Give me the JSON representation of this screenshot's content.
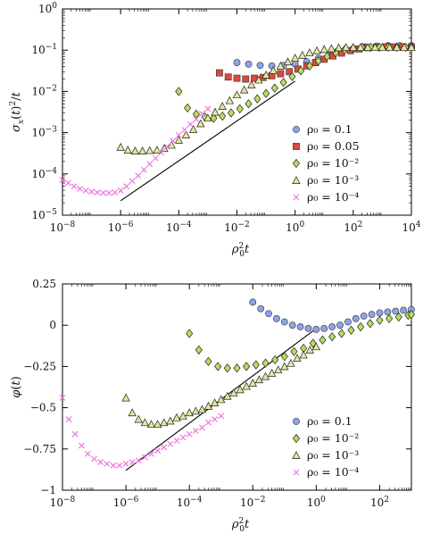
{
  "chart_data": [
    {
      "type": "scatter",
      "id": "top",
      "xlabel": "ρ0²t",
      "ylabel": "σx(t)²/t",
      "xscale": "log",
      "yscale": "log",
      "xlim": [
        1e-08,
        10000.0
      ],
      "ylim": [
        1e-05,
        1
      ],
      "xticks": [
        -8,
        -6,
        -4,
        -2,
        0,
        2,
        4
      ],
      "yticks": [
        -5,
        -4,
        -3,
        -2,
        -1,
        0
      ],
      "legend_position": "bottom-right",
      "series": [
        {
          "name": "ρ0 = 0.1",
          "name_text": "ρ₀ = 0.1",
          "marker": "circle",
          "color": "#8ea2e8",
          "x": [
            -2,
            -1.6,
            -1.2,
            -0.8,
            -0.4,
            0,
            0.4,
            0.8,
            1.2,
            1.6,
            2,
            2.4,
            2.8,
            3.2,
            3.6,
            4
          ],
          "y": [
            -1.3,
            -1.34,
            -1.37,
            -1.38,
            -1.37,
            -1.34,
            -1.28,
            -1.2,
            -1.12,
            -1.04,
            -0.97,
            -0.92,
            -0.9,
            -0.89,
            -0.89,
            -0.89
          ]
        },
        {
          "name": "ρ0 = 0.05",
          "name_text": "ρ₀ = 0.05",
          "marker": "square",
          "color": "#d84a3a",
          "x": [
            -2.6,
            -2.3,
            -2,
            -1.7,
            -1.4,
            -1.1,
            -0.8,
            -0.5,
            -0.2,
            0.1,
            0.4,
            0.7,
            1,
            1.3,
            1.6,
            1.9,
            2.2,
            2.5,
            2.8,
            3.1,
            3.4,
            3.7,
            4
          ],
          "y": [
            -1.55,
            -1.65,
            -1.68,
            -1.7,
            -1.68,
            -1.66,
            -1.62,
            -1.57,
            -1.52,
            -1.46,
            -1.38,
            -1.3,
            -1.22,
            -1.14,
            -1.07,
            -1.01,
            -0.97,
            -0.94,
            -0.93,
            -0.92,
            -0.92,
            -0.92,
            -0.92
          ]
        },
        {
          "name": "ρ0 = 10^-2",
          "name_text": "ρ₀ = 10⁻²",
          "marker": "diamond",
          "color": "#b7dd62",
          "x": [
            -4,
            -3.7,
            -3.4,
            -3.1,
            -2.8,
            -2.5,
            -2.2,
            -1.9,
            -1.6,
            -1.3,
            -1,
            -0.7,
            -0.4,
            -0.1,
            0.2,
            0.5,
            0.8,
            1.1,
            1.4,
            1.7,
            2,
            2.3,
            2.6,
            2.9,
            3.2,
            3.5,
            3.8,
            4
          ],
          "y": [
            -2.0,
            -2.4,
            -2.55,
            -2.62,
            -2.65,
            -2.6,
            -2.52,
            -2.42,
            -2.3,
            -2.18,
            -2.05,
            -1.92,
            -1.78,
            -1.64,
            -1.5,
            -1.38,
            -1.26,
            -1.15,
            -1.06,
            -0.99,
            -0.95,
            -0.93,
            -0.93,
            -0.93,
            -0.93,
            -0.93,
            -0.93,
            -0.93
          ]
        },
        {
          "name": "ρ0 = 10^-3",
          "name_text": "ρ₀ = 10⁻³",
          "marker": "triangle",
          "color": "#e2e89c",
          "x": [
            -6,
            -5.75,
            -5.5,
            -5.25,
            -5,
            -4.75,
            -4.5,
            -4.25,
            -4,
            -3.75,
            -3.5,
            -3.25,
            -3,
            -2.75,
            -2.5,
            -2.25,
            -2,
            -1.75,
            -1.5,
            -1.25,
            -1,
            -0.75,
            -0.5,
            -0.25,
            0,
            0.25,
            0.5,
            0.75,
            1,
            1.25,
            1.5,
            1.75,
            2,
            2.25,
            2.5,
            2.75,
            3,
            3.25,
            3.5,
            3.75,
            4
          ],
          "y": [
            -3.35,
            -3.42,
            -3.44,
            -3.44,
            -3.43,
            -3.42,
            -3.38,
            -3.3,
            -3.18,
            -3.05,
            -2.92,
            -2.78,
            -2.64,
            -2.5,
            -2.36,
            -2.22,
            -2.08,
            -1.96,
            -1.84,
            -1.72,
            -1.6,
            -1.49,
            -1.38,
            -1.28,
            -1.19,
            -1.12,
            -1.06,
            -1.01,
            -0.98,
            -0.96,
            -0.94,
            -0.93,
            -0.93,
            -0.93,
            -0.93,
            -0.93,
            -0.93,
            -0.93,
            -0.93,
            -0.93,
            -0.93
          ]
        },
        {
          "name": "ρ0 = 10^-4",
          "name_text": "ρ₀ = 10⁻⁴",
          "marker": "cross",
          "color": "#ee77dd",
          "x": [
            -8,
            -7.8,
            -7.6,
            -7.4,
            -7.2,
            -7,
            -6.8,
            -6.6,
            -6.4,
            -6.2,
            -6,
            -5.8,
            -5.6,
            -5.4,
            -5.2,
            -5,
            -4.8,
            -4.6,
            -4.4,
            -4.2,
            -4,
            -3.8,
            -3.6,
            -3.4,
            -3.2,
            -3
          ],
          "y": [
            -4.15,
            -4.22,
            -4.3,
            -4.36,
            -4.4,
            -4.43,
            -4.45,
            -4.46,
            -4.46,
            -4.45,
            -4.4,
            -4.3,
            -4.17,
            -4.04,
            -3.9,
            -3.76,
            -3.62,
            -3.48,
            -3.34,
            -3.2,
            -3.06,
            -2.93,
            -2.8,
            -2.67,
            -2.54,
            -2.42
          ]
        }
      ],
      "reference_line": {
        "x": [
          -6,
          0
        ],
        "y": [
          -4.65,
          -1.75
        ]
      }
    },
    {
      "type": "scatter",
      "id": "bottom",
      "xlabel": "ρ0²t",
      "ylabel": "φ(t)",
      "xscale": "log",
      "yscale": "linear",
      "xlim": [
        1e-08,
        1000.0
      ],
      "ylim": [
        -1,
        0.25
      ],
      "xticks": [
        -8,
        -6,
        -4,
        -2,
        0,
        2
      ],
      "yticks": [
        0.25,
        0,
        -0.25,
        -0.5,
        -0.75,
        -1
      ],
      "ytick_labels": [
        "0.25",
        "0",
        "−0.25",
        "−0.5",
        "−0.75",
        "−1"
      ],
      "legend_position": "bottom-right",
      "series": [
        {
          "name": "ρ0 = 0.1",
          "name_text": "ρ₀ = 0.1",
          "marker": "circle",
          "color": "#8ea2e8",
          "x": [
            -2,
            -1.75,
            -1.5,
            -1.25,
            -1,
            -0.75,
            -0.5,
            -0.25,
            0,
            0.25,
            0.5,
            0.75,
            1,
            1.25,
            1.5,
            1.75,
            2,
            2.25,
            2.5,
            2.75,
            3
          ],
          "y": [
            0.14,
            0.1,
            0.07,
            0.04,
            0.02,
            0.0,
            -0.01,
            -0.02,
            -0.025,
            -0.02,
            -0.01,
            0.0,
            0.02,
            0.04,
            0.055,
            0.065,
            0.075,
            0.08,
            0.085,
            0.09,
            0.095
          ]
        },
        {
          "name": "ρ0 = 10^-2",
          "name_text": "ρ₀ = 10⁻²",
          "marker": "diamond",
          "color": "#b7dd62",
          "x": [
            -4,
            -3.7,
            -3.4,
            -3.1,
            -2.8,
            -2.5,
            -2.2,
            -1.9,
            -1.6,
            -1.3,
            -1,
            -0.7,
            -0.4,
            -0.1,
            0.2,
            0.5,
            0.8,
            1.1,
            1.4,
            1.7,
            2,
            2.3,
            2.6,
            2.9,
            3
          ],
          "y": [
            -0.05,
            -0.15,
            -0.22,
            -0.25,
            -0.26,
            -0.26,
            -0.25,
            -0.24,
            -0.23,
            -0.21,
            -0.19,
            -0.16,
            -0.14,
            -0.11,
            -0.09,
            -0.07,
            -0.05,
            -0.03,
            -0.01,
            0.01,
            0.03,
            0.04,
            0.05,
            0.06,
            0.065
          ]
        },
        {
          "name": "ρ0 = 10^-3",
          "name_text": "ρ₀ = 10⁻³",
          "marker": "triangle",
          "color": "#e2e89c",
          "x": [
            -6,
            -5.8,
            -5.6,
            -5.4,
            -5.2,
            -5,
            -4.8,
            -4.6,
            -4.4,
            -4.2,
            -4,
            -3.8,
            -3.6,
            -3.4,
            -3.2,
            -3,
            -2.8,
            -2.6,
            -2.4,
            -2.2,
            -2,
            -1.8,
            -1.6,
            -1.4,
            -1.2,
            -1,
            -0.8,
            -0.6,
            -0.4,
            -0.2,
            0
          ],
          "y": [
            -0.44,
            -0.53,
            -0.57,
            -0.59,
            -0.6,
            -0.6,
            -0.59,
            -0.58,
            -0.56,
            -0.55,
            -0.53,
            -0.52,
            -0.51,
            -0.49,
            -0.47,
            -0.45,
            -0.43,
            -0.41,
            -0.39,
            -0.37,
            -0.35,
            -0.33,
            -0.31,
            -0.29,
            -0.27,
            -0.25,
            -0.23,
            -0.2,
            -0.18,
            -0.15,
            -0.13
          ]
        },
        {
          "name": "ρ0 = 10^-4",
          "name_text": "ρ₀ = 10⁻⁴",
          "marker": "cross",
          "color": "#ee77dd",
          "x": [
            -8,
            -7.8,
            -7.6,
            -7.4,
            -7.2,
            -7,
            -6.8,
            -6.6,
            -6.4,
            -6.2,
            -6,
            -5.8,
            -5.6,
            -5.4,
            -5.2,
            -5,
            -4.8,
            -4.6,
            -4.4,
            -4.2,
            -4,
            -3.8,
            -3.6,
            -3.4,
            -3.2,
            -3
          ],
          "y": [
            -0.44,
            -0.57,
            -0.66,
            -0.73,
            -0.78,
            -0.81,
            -0.83,
            -0.84,
            -0.85,
            -0.85,
            -0.84,
            -0.83,
            -0.82,
            -0.8,
            -0.78,
            -0.76,
            -0.74,
            -0.72,
            -0.7,
            -0.68,
            -0.66,
            -0.64,
            -0.62,
            -0.59,
            -0.57,
            -0.55
          ]
        }
      ],
      "reference_line": {
        "x": [
          -6,
          0
        ],
        "y": [
          -0.88,
          -0.02
        ]
      }
    }
  ]
}
